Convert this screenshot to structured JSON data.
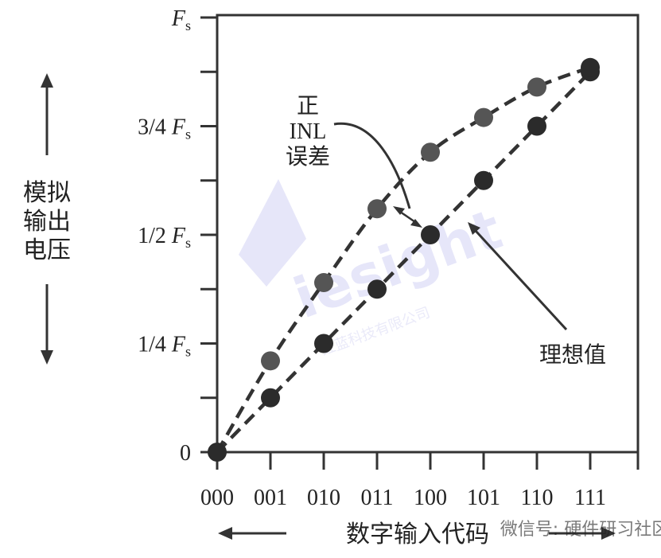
{
  "y_axis": {
    "ticks": [
      {
        "label": "0",
        "value": 0
      },
      {
        "label": "1/4 ",
        "italic": "F",
        "sub": "s",
        "value": 0.25
      },
      {
        "label": "1/2 ",
        "italic": "F",
        "sub": "s",
        "value": 0.5
      },
      {
        "label": "3/4 ",
        "italic": "F",
        "sub": "s",
        "value": 0.75
      },
      {
        "label": "",
        "italic": "F",
        "sub": "s",
        "value": 1.0
      }
    ],
    "minor_ticks": [
      0.125,
      0.375,
      0.625,
      0.875
    ],
    "title_lines": [
      "模拟",
      "输出",
      "电压"
    ]
  },
  "x_axis": {
    "codes": [
      "000",
      "001",
      "010",
      "011",
      "100",
      "101",
      "110",
      "111"
    ],
    "title": "数字输入代码"
  },
  "series": {
    "ideal": [
      0,
      0.125,
      0.25,
      0.375,
      0.5,
      0.625,
      0.75,
      0.875
    ],
    "positive_inl": [
      0,
      0.21,
      0.39,
      0.56,
      0.69,
      0.77,
      0.84,
      0.885
    ]
  },
  "annotations": {
    "inl_lines": [
      "正",
      "INL",
      "误差"
    ],
    "ideal_label": "理想值"
  },
  "watermarks": {
    "logo_text": "iesight",
    "logo_sub": "红蓝科技有限公司",
    "corner_text": "微信号: 硬件研习社区"
  },
  "colors": {
    "axis": "#333333",
    "ideal_point": "#2b2b2b",
    "inl_point": "#555555",
    "watermark": "#c9c9f2"
  }
}
